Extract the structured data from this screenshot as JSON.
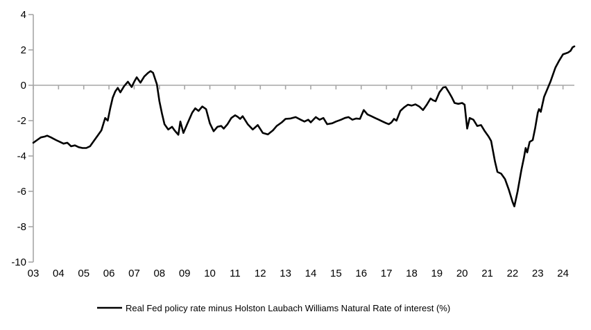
{
  "chart": {
    "legend": {
      "label": "Real Fed policy rate minus Holston Laubach Williams Natural Rate of interest (%)"
    },
    "colors": {
      "series": "#000000",
      "axis": "#a6a6a6",
      "background": "#ffffff",
      "text": "#000000"
    }
  },
  "chart_data": {
    "type": "line",
    "title": "",
    "xlabel": "",
    "ylabel": "",
    "legend_position": "bottom",
    "grid": false,
    "zero_line": true,
    "ylim": [
      -10,
      4
    ],
    "y_ticks": [
      4,
      2,
      0,
      -2,
      -4,
      -6,
      -8,
      -10
    ],
    "xlim": [
      2003,
      2024.45
    ],
    "x_tick_years": [
      2003,
      2004,
      2005,
      2006,
      2007,
      2008,
      2009,
      2010,
      2011,
      2012,
      2013,
      2014,
      2015,
      2016,
      2017,
      2018,
      2019,
      2020,
      2021,
      2022,
      2023,
      2024
    ],
    "x_tick_labels": [
      "03",
      "04",
      "05",
      "06",
      "07",
      "08",
      "09",
      "10",
      "11",
      "12",
      "13",
      "14",
      "15",
      "16",
      "17",
      "18",
      "19",
      "20",
      "21",
      "22",
      "23",
      "24"
    ],
    "series": [
      {
        "name": "Real Fed policy rate minus Holston Laubach Williams Natural Rate of interest (%)",
        "points": [
          [
            2003.0,
            -3.25
          ],
          [
            2003.15,
            -3.1
          ],
          [
            2003.3,
            -2.95
          ],
          [
            2003.45,
            -2.9
          ],
          [
            2003.55,
            -2.85
          ],
          [
            2003.7,
            -2.95
          ],
          [
            2003.9,
            -3.1
          ],
          [
            2004.05,
            -3.2
          ],
          [
            2004.2,
            -3.3
          ],
          [
            2004.35,
            -3.25
          ],
          [
            2004.5,
            -3.45
          ],
          [
            2004.65,
            -3.4
          ],
          [
            2004.8,
            -3.5
          ],
          [
            2004.95,
            -3.55
          ],
          [
            2005.1,
            -3.55
          ],
          [
            2005.25,
            -3.45
          ],
          [
            2005.4,
            -3.15
          ],
          [
            2005.55,
            -2.85
          ],
          [
            2005.7,
            -2.55
          ],
          [
            2005.85,
            -1.85
          ],
          [
            2005.95,
            -2.0
          ],
          [
            2006.05,
            -1.3
          ],
          [
            2006.15,
            -0.7
          ],
          [
            2006.25,
            -0.35
          ],
          [
            2006.35,
            -0.15
          ],
          [
            2006.45,
            -0.4
          ],
          [
            2006.6,
            -0.05
          ],
          [
            2006.75,
            0.2
          ],
          [
            2006.9,
            -0.1
          ],
          [
            2007.0,
            0.2
          ],
          [
            2007.1,
            0.45
          ],
          [
            2007.25,
            0.15
          ],
          [
            2007.4,
            0.5
          ],
          [
            2007.55,
            0.7
          ],
          [
            2007.65,
            0.8
          ],
          [
            2007.75,
            0.7
          ],
          [
            2007.9,
            0.05
          ],
          [
            2008.0,
            -0.9
          ],
          [
            2008.1,
            -1.6
          ],
          [
            2008.2,
            -2.2
          ],
          [
            2008.35,
            -2.5
          ],
          [
            2008.5,
            -2.35
          ],
          [
            2008.6,
            -2.55
          ],
          [
            2008.75,
            -2.8
          ],
          [
            2008.83,
            -2.05
          ],
          [
            2008.95,
            -2.7
          ],
          [
            2009.1,
            -2.2
          ],
          [
            2009.3,
            -1.55
          ],
          [
            2009.42,
            -1.3
          ],
          [
            2009.55,
            -1.45
          ],
          [
            2009.7,
            -1.2
          ],
          [
            2009.85,
            -1.35
          ],
          [
            2010.0,
            -2.15
          ],
          [
            2010.15,
            -2.6
          ],
          [
            2010.3,
            -2.35
          ],
          [
            2010.45,
            -2.3
          ],
          [
            2010.55,
            -2.45
          ],
          [
            2010.7,
            -2.2
          ],
          [
            2010.85,
            -1.85
          ],
          [
            2011.0,
            -1.7
          ],
          [
            2011.1,
            -1.78
          ],
          [
            2011.2,
            -1.9
          ],
          [
            2011.3,
            -1.75
          ],
          [
            2011.5,
            -2.2
          ],
          [
            2011.7,
            -2.5
          ],
          [
            2011.9,
            -2.25
          ],
          [
            2012.1,
            -2.7
          ],
          [
            2012.3,
            -2.78
          ],
          [
            2012.5,
            -2.55
          ],
          [
            2012.65,
            -2.3
          ],
          [
            2012.85,
            -2.1
          ],
          [
            2013.0,
            -1.9
          ],
          [
            2013.2,
            -1.88
          ],
          [
            2013.4,
            -1.8
          ],
          [
            2013.6,
            -1.95
          ],
          [
            2013.75,
            -2.05
          ],
          [
            2013.9,
            -1.95
          ],
          [
            2014.0,
            -2.1
          ],
          [
            2014.2,
            -1.8
          ],
          [
            2014.35,
            -1.95
          ],
          [
            2014.5,
            -1.85
          ],
          [
            2014.65,
            -2.2
          ],
          [
            2014.85,
            -2.15
          ],
          [
            2015.0,
            -2.05
          ],
          [
            2015.2,
            -1.95
          ],
          [
            2015.35,
            -1.85
          ],
          [
            2015.5,
            -1.8
          ],
          [
            2015.65,
            -1.95
          ],
          [
            2015.8,
            -1.88
          ],
          [
            2015.95,
            -1.9
          ],
          [
            2016.1,
            -1.4
          ],
          [
            2016.25,
            -1.65
          ],
          [
            2016.4,
            -1.75
          ],
          [
            2016.55,
            -1.85
          ],
          [
            2016.7,
            -1.95
          ],
          [
            2016.85,
            -2.05
          ],
          [
            2017.0,
            -2.15
          ],
          [
            2017.1,
            -2.2
          ],
          [
            2017.2,
            -2.1
          ],
          [
            2017.3,
            -1.9
          ],
          [
            2017.4,
            -2.0
          ],
          [
            2017.55,
            -1.45
          ],
          [
            2017.7,
            -1.25
          ],
          [
            2017.85,
            -1.1
          ],
          [
            2018.0,
            -1.15
          ],
          [
            2018.15,
            -1.08
          ],
          [
            2018.3,
            -1.2
          ],
          [
            2018.45,
            -1.4
          ],
          [
            2018.6,
            -1.1
          ],
          [
            2018.75,
            -0.75
          ],
          [
            2018.85,
            -0.85
          ],
          [
            2018.95,
            -0.9
          ],
          [
            2019.1,
            -0.4
          ],
          [
            2019.25,
            -0.12
          ],
          [
            2019.35,
            -0.1
          ],
          [
            2019.5,
            -0.45
          ],
          [
            2019.6,
            -0.7
          ],
          [
            2019.7,
            -1.0
          ],
          [
            2019.85,
            -1.05
          ],
          [
            2020.0,
            -1.0
          ],
          [
            2020.1,
            -1.1
          ],
          [
            2020.2,
            -2.45
          ],
          [
            2020.3,
            -1.85
          ],
          [
            2020.45,
            -1.95
          ],
          [
            2020.6,
            -2.3
          ],
          [
            2020.75,
            -2.25
          ],
          [
            2020.9,
            -2.6
          ],
          [
            2021.05,
            -2.9
          ],
          [
            2021.15,
            -3.15
          ],
          [
            2021.3,
            -4.3
          ],
          [
            2021.4,
            -4.9
          ],
          [
            2021.55,
            -5.0
          ],
          [
            2021.7,
            -5.3
          ],
          [
            2021.85,
            -5.9
          ],
          [
            2022.0,
            -6.6
          ],
          [
            2022.07,
            -6.85
          ],
          [
            2022.2,
            -6.0
          ],
          [
            2022.35,
            -4.8
          ],
          [
            2022.45,
            -4.1
          ],
          [
            2022.52,
            -3.55
          ],
          [
            2022.58,
            -3.8
          ],
          [
            2022.68,
            -3.2
          ],
          [
            2022.8,
            -3.1
          ],
          [
            2022.9,
            -2.4
          ],
          [
            2023.0,
            -1.55
          ],
          [
            2023.05,
            -1.35
          ],
          [
            2023.12,
            -1.5
          ],
          [
            2023.25,
            -0.65
          ],
          [
            2023.4,
            -0.15
          ],
          [
            2023.5,
            0.2
          ],
          [
            2023.6,
            0.6
          ],
          [
            2023.7,
            1.0
          ],
          [
            2023.85,
            1.4
          ],
          [
            2024.0,
            1.75
          ],
          [
            2024.1,
            1.8
          ],
          [
            2024.2,
            1.85
          ],
          [
            2024.3,
            1.95
          ],
          [
            2024.38,
            2.15
          ],
          [
            2024.45,
            2.2
          ]
        ]
      }
    ]
  }
}
